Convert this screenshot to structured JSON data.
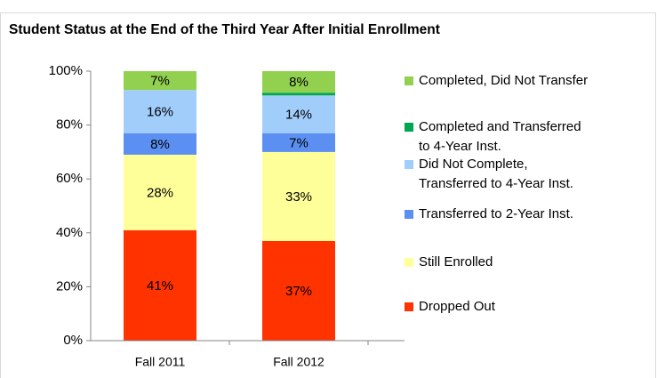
{
  "chart_data": {
    "type": "stacked_bar",
    "title": "Student Status at the End of the Third Year After Initial Enrollment",
    "categories": [
      "Fall 2011",
      "Fall 2012"
    ],
    "series": [
      {
        "name": "Dropped Out",
        "color": "#ff3300",
        "values": [
          41,
          37
        ],
        "value_labels": [
          "41%",
          "37%"
        ]
      },
      {
        "name": "Still Enrolled",
        "color": "#ffff99",
        "values": [
          28,
          33
        ],
        "value_labels": [
          "28%",
          "33%"
        ]
      },
      {
        "name": "Transferred to 2-Year Inst.",
        "color": "#5b8ff2",
        "values": [
          8,
          7
        ],
        "value_labels": [
          "8%",
          "7%"
        ]
      },
      {
        "name": "Did Not Complete, Transferred to 4-Year Inst.",
        "color": "#a1cdfb",
        "values": [
          16,
          14
        ],
        "value_labels": [
          "16%",
          "14%"
        ]
      },
      {
        "name": "Completed and Transferred to 4-Year Inst.",
        "color": "#00a650",
        "values": [
          0,
          1
        ]
      },
      {
        "name": "Completed, Did Not Transfer",
        "color": "#92d050",
        "values": [
          7,
          8
        ],
        "value_labels": [
          "7%",
          "8%"
        ]
      }
    ],
    "ylim": [
      0,
      100
    ],
    "yticks": [
      {
        "value": 0,
        "label": "0%"
      },
      {
        "value": 20,
        "label": "20%"
      },
      {
        "value": 40,
        "label": "40%"
      },
      {
        "value": 60,
        "label": "60%"
      },
      {
        "value": 80,
        "label": "80%"
      },
      {
        "value": 100,
        "label": "100%"
      }
    ],
    "legend": "right"
  }
}
